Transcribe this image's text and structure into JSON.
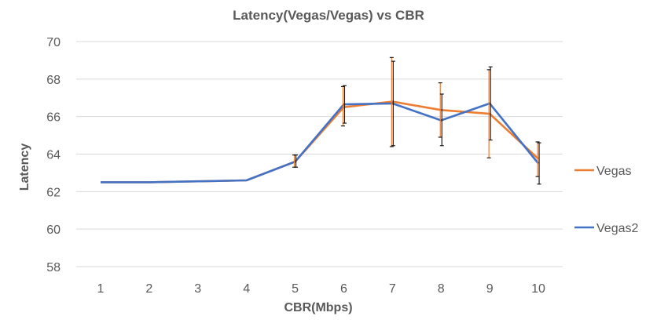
{
  "chart_data": {
    "type": "line",
    "title": "Latency(Vegas/Vegas) vs CBR",
    "xlabel": "CBR(Mbps)",
    "ylabel": "Latency",
    "categories": [
      "1",
      "2",
      "3",
      "4",
      "5",
      "6",
      "7",
      "8",
      "9",
      "10"
    ],
    "ylim": [
      58,
      70
    ],
    "yticks": [
      58,
      60,
      62,
      64,
      66,
      68,
      70
    ],
    "grid": true,
    "legend_position": "right",
    "series": [
      {
        "name": "Vegas",
        "color": "#ED7D31",
        "values": [
          62.5,
          62.5,
          62.55,
          62.6,
          63.6,
          66.5,
          66.8,
          66.35,
          66.15,
          63.75
        ],
        "error_low": [
          null,
          null,
          null,
          null,
          63.3,
          65.5,
          64.4,
          64.9,
          63.8,
          62.8
        ],
        "error_high": [
          null,
          null,
          null,
          null,
          63.95,
          67.6,
          69.15,
          67.8,
          68.5,
          64.65
        ]
      },
      {
        "name": "Vegas2",
        "color": "#4472C4",
        "values": [
          62.5,
          62.5,
          62.55,
          62.6,
          63.6,
          66.65,
          66.7,
          65.8,
          66.7,
          63.5
        ],
        "error_low": [
          null,
          null,
          null,
          null,
          63.3,
          65.65,
          64.45,
          64.45,
          64.75,
          62.4
        ],
        "error_high": [
          null,
          null,
          null,
          null,
          63.95,
          67.65,
          68.95,
          67.2,
          68.65,
          64.6
        ]
      }
    ]
  }
}
